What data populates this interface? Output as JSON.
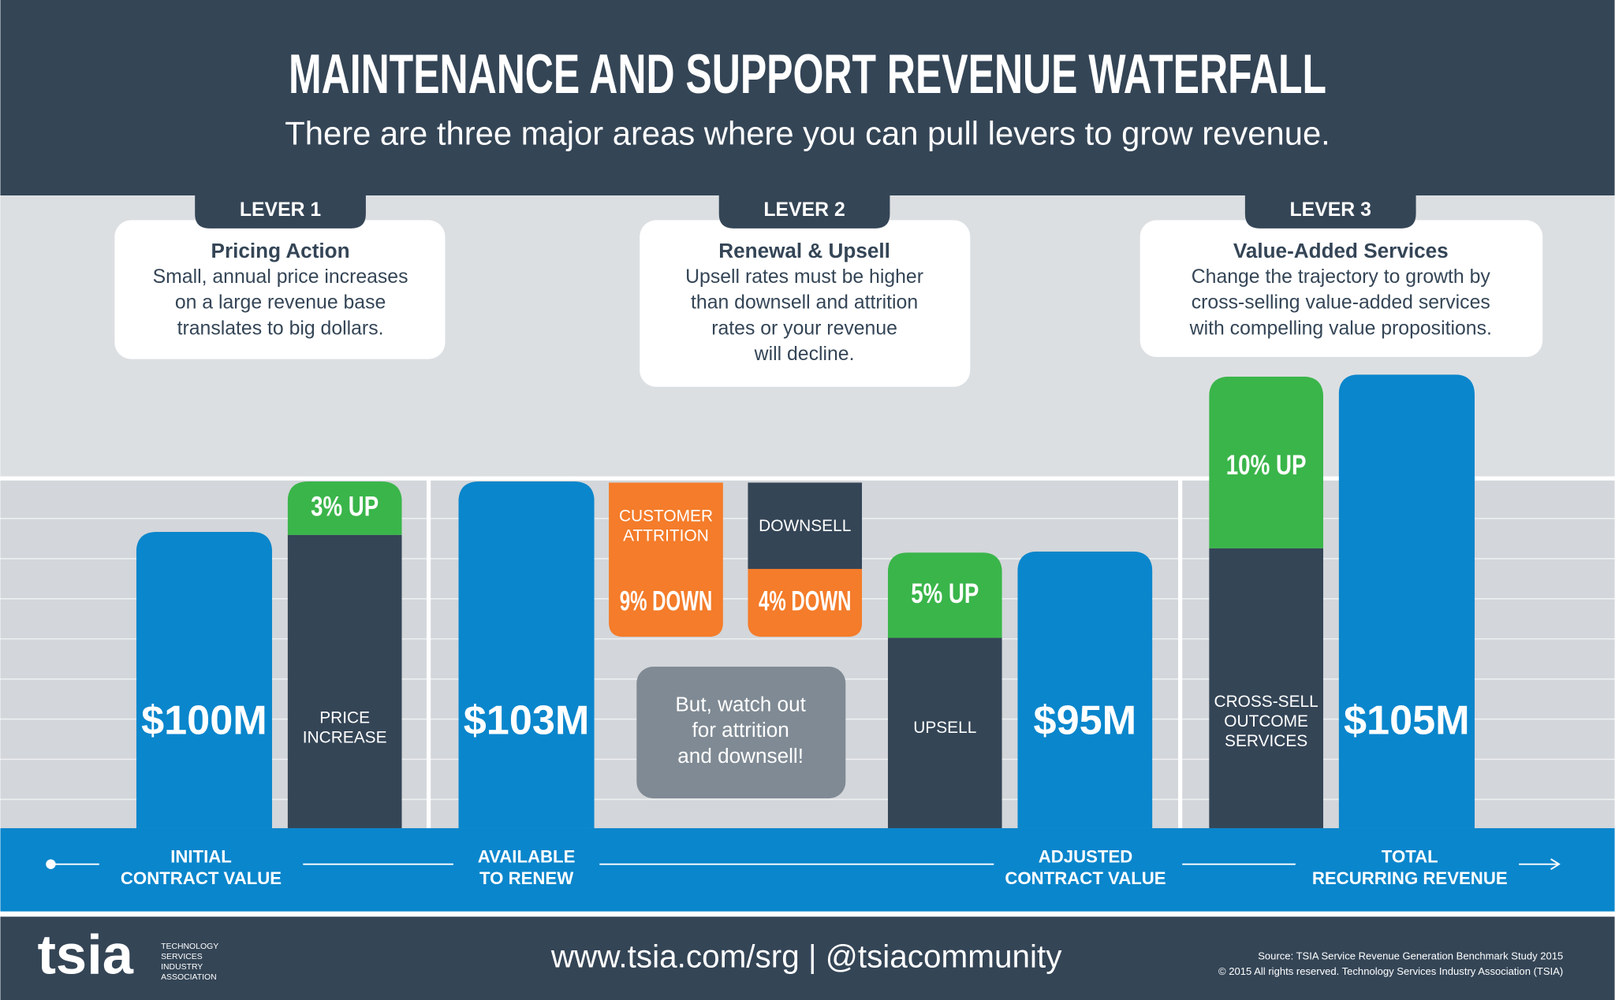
{
  "header": {
    "title": "MAINTENANCE AND SUPPORT REVENUE WATERFALL",
    "subtitle": "There are three major areas where you can pull levers to grow revenue."
  },
  "levers": [
    {
      "tag": "LEVER 1",
      "heading": "Pricing Action",
      "body": [
        "Small, annual price increases",
        "on a large revenue base",
        "translates to big dollars."
      ]
    },
    {
      "tag": "LEVER 2",
      "heading": "Renewal & Upsell",
      "body": [
        "Upsell rates must be higher",
        "than downsell and attrition",
        "rates or your revenue",
        "will decline."
      ]
    },
    {
      "tag": "LEVER 3",
      "heading": "Value-Added Services",
      "body": [
        "Change the trajectory to growth by",
        "cross-selling value-added services",
        "with compelling value propositions."
      ]
    }
  ],
  "bars": [
    {
      "label": [
        "$100M"
      ]
    },
    {
      "label": [
        "PRICE",
        "INCREASE"
      ],
      "change": "3% UP"
    },
    {
      "label": [
        "$103M"
      ]
    },
    {
      "label": [
        "CUSTOMER",
        "ATTRITION"
      ],
      "change": "9% DOWN"
    },
    {
      "label": [
        "DOWNSELL"
      ],
      "change": "4% DOWN"
    },
    {
      "label": [
        "UPSELL"
      ],
      "change": "5% UP"
    },
    {
      "label": [
        "$95M"
      ]
    },
    {
      "label": [
        "CROSS-SELL",
        "OUTCOME",
        "SERVICES"
      ],
      "change": "10% UP"
    },
    {
      "label": [
        "$105M"
      ]
    }
  ],
  "callout": [
    "But, watch out",
    "for attrition",
    "and downsell!"
  ],
  "stages": [
    [
      "INITIAL",
      "CONTRACT VALUE"
    ],
    [
      "AVAILABLE",
      "TO RENEW"
    ],
    [
      "ADJUSTED",
      "CONTRACT VALUE"
    ],
    [
      "TOTAL",
      "RECURRING REVENUE"
    ]
  ],
  "footer": {
    "logo": "tsia",
    "logo_text": [
      "TECHNOLOGY",
      "SERVICES",
      "INDUSTRY",
      "ASSOCIATION"
    ],
    "links": "www.tsia.com/srg | @tsiacommunity",
    "source": [
      "Source: TSIA Service Revenue Generation Benchmark Study 2015",
      "© 2015 All rights reserved. Technology Services Industry Association (TSIA)"
    ]
  }
}
